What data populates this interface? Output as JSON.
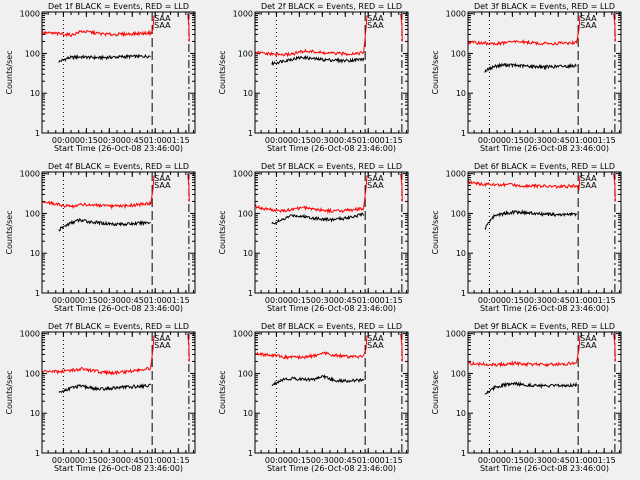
{
  "figure": {
    "background": "#f0f0f0",
    "events_color": "#000000",
    "lld_color": "#ff0000"
  },
  "common": {
    "ylabel": "Counts/sec",
    "xlabel": "Start Time (26-Oct-08 23:46:00)",
    "y_ticks": [
      "1",
      "10",
      "100",
      "1000"
    ],
    "x_ticks": [
      "00:00",
      "00:15",
      "00:30",
      "00:45",
      "01:00",
      "01:15"
    ],
    "saa_label": "SAA",
    "x_tick_minutes": [
      14,
      29,
      44,
      59,
      74,
      89
    ],
    "xlim_minutes": [
      0,
      100
    ],
    "ylim": [
      1,
      1100
    ],
    "y_scale": "log",
    "markers": {
      "dotted_min": 14,
      "dashed_min": 72,
      "dashdot_min": 96
    }
  },
  "chart_data": [
    {
      "type": "line",
      "title": "Det 1f BLACK = Events, RED = LLD",
      "series": [
        {
          "name": "Events",
          "color": "#000000",
          "x_start": 11,
          "x_end": 71,
          "values": [
            62,
            78,
            82,
            80,
            78,
            80,
            82,
            84,
            84,
            86
          ]
        },
        {
          "name": "LLD",
          "color": "#ff0000",
          "x_start": 0,
          "x_end": 71,
          "values": [
            330,
            320,
            310,
            290,
            360,
            340,
            310,
            300,
            305,
            310,
            320,
            330
          ]
        }
      ]
    },
    {
      "type": "line",
      "title": "Det 2f BLACK = Events, RED = LLD",
      "series": [
        {
          "name": "Events",
          "color": "#000000",
          "x_start": 11,
          "x_end": 71,
          "values": [
            55,
            64,
            72,
            80,
            74,
            70,
            68,
            66,
            68,
            72
          ]
        },
        {
          "name": "LLD",
          "color": "#ff0000",
          "x_start": 0,
          "x_end": 71,
          "values": [
            105,
            100,
            95,
            92,
            100,
            115,
            110,
            102,
            100,
            98,
            100,
            104
          ]
        }
      ]
    },
    {
      "type": "line",
      "title": "Det 3f BLACK = Events, RED = LLD",
      "series": [
        {
          "name": "Events",
          "color": "#000000",
          "x_start": 11,
          "x_end": 71,
          "values": [
            36,
            48,
            52,
            50,
            48,
            47,
            46,
            47,
            48,
            50
          ]
        },
        {
          "name": "LLD",
          "color": "#ff0000",
          "x_start": 0,
          "x_end": 71,
          "values": [
            190,
            185,
            180,
            175,
            190,
            200,
            190,
            180,
            178,
            180,
            182,
            188
          ]
        }
      ]
    },
    {
      "type": "line",
      "title": "Det 4f BLACK = Events, RED = LLD",
      "series": [
        {
          "name": "Events",
          "color": "#000000",
          "x_start": 11,
          "x_end": 71,
          "values": [
            38,
            55,
            68,
            62,
            58,
            55,
            54,
            55,
            57,
            60
          ]
        },
        {
          "name": "LLD",
          "color": "#ff0000",
          "x_start": 0,
          "x_end": 71,
          "values": [
            200,
            180,
            160,
            150,
            170,
            165,
            155,
            150,
            152,
            160,
            170,
            180
          ]
        }
      ]
    },
    {
      "type": "line",
      "title": "Det 5f BLACK = Events, RED = LLD",
      "series": [
        {
          "name": "Events",
          "color": "#000000",
          "x_start": 11,
          "x_end": 71,
          "values": [
            55,
            68,
            90,
            85,
            78,
            72,
            70,
            75,
            85,
            95
          ]
        },
        {
          "name": "LLD",
          "color": "#ff0000",
          "x_start": 0,
          "x_end": 71,
          "values": [
            150,
            130,
            120,
            115,
            130,
            140,
            130,
            120,
            115,
            118,
            125,
            130
          ]
        }
      ]
    },
    {
      "type": "line",
      "title": "Det 6f BLACK = Events, RED = LLD",
      "series": [
        {
          "name": "Events",
          "color": "#000000",
          "x_start": 11,
          "x_end": 71,
          "values": [
            40,
            90,
            100,
            110,
            105,
            98,
            95,
            92,
            94,
            96
          ]
        },
        {
          "name": "LLD",
          "color": "#ff0000",
          "x_start": 0,
          "x_end": 71,
          "values": [
            600,
            560,
            540,
            520,
            530,
            510,
            500,
            490,
            480,
            470,
            480,
            500
          ]
        }
      ]
    },
    {
      "type": "line",
      "title": "Det 7f BLACK = Events, RED = LLD",
      "series": [
        {
          "name": "Events",
          "color": "#000000",
          "x_start": 11,
          "x_end": 71,
          "values": [
            32,
            42,
            48,
            44,
            40,
            42,
            45,
            46,
            48,
            50
          ]
        },
        {
          "name": "LLD",
          "color": "#ff0000",
          "x_start": 0,
          "x_end": 71,
          "values": [
            115,
            110,
            112,
            120,
            130,
            118,
            108,
            104,
            108,
            115,
            125,
            135
          ]
        }
      ]
    },
    {
      "type": "line",
      "title": "Det 8f BLACK = Events, RED = LLD",
      "series": [
        {
          "name": "Events",
          "color": "#000000",
          "x_start": 11,
          "x_end": 71,
          "values": [
            50,
            70,
            75,
            72,
            70,
            85,
            68,
            65,
            66,
            68
          ]
        },
        {
          "name": "LLD",
          "color": "#ff0000",
          "x_start": 0,
          "x_end": 71,
          "values": [
            330,
            300,
            280,
            260,
            250,
            260,
            280,
            320,
            290,
            270,
            260,
            270
          ]
        }
      ]
    },
    {
      "type": "line",
      "title": "Det 9f BLACK = Events, RED = LLD",
      "series": [
        {
          "name": "Events",
          "color": "#000000",
          "x_start": 11,
          "x_end": 71,
          "values": [
            30,
            45,
            52,
            55,
            52,
            50,
            48,
            49,
            50,
            52
          ]
        },
        {
          "name": "LLD",
          "color": "#ff0000",
          "x_start": 0,
          "x_end": 71,
          "values": [
            180,
            175,
            170,
            165,
            175,
            180,
            172,
            168,
            165,
            170,
            175,
            180
          ]
        }
      ]
    }
  ]
}
